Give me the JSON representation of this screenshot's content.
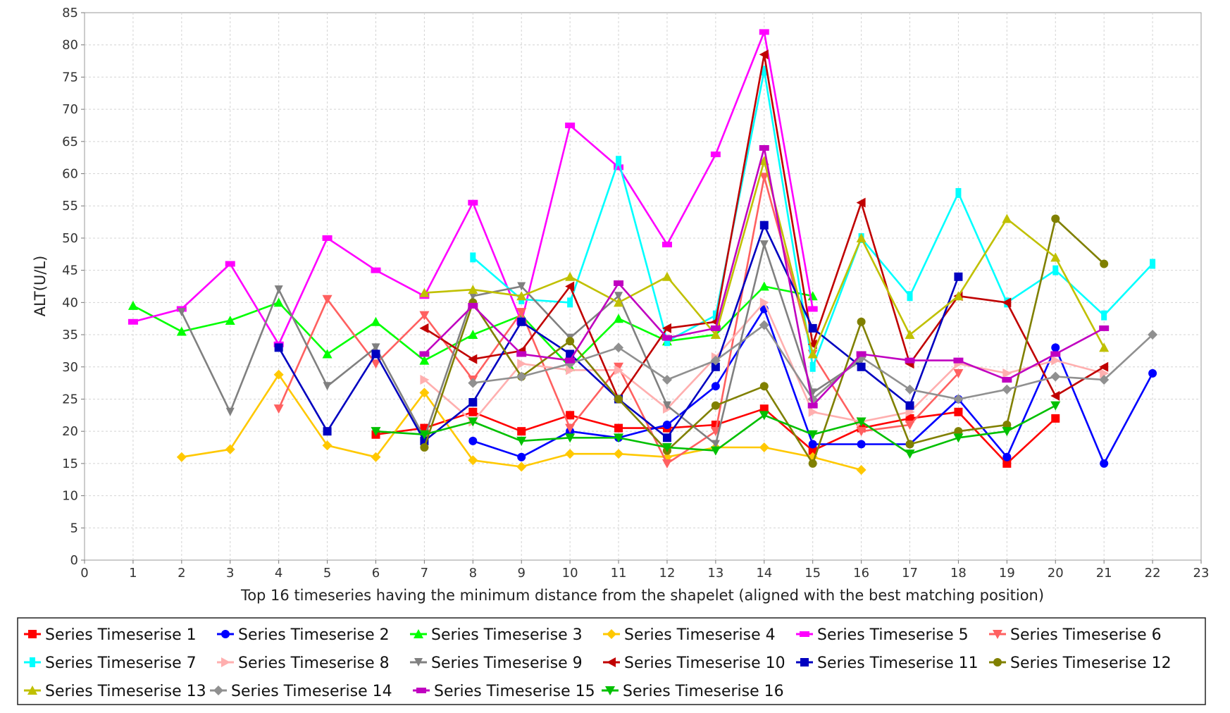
{
  "chart_data": {
    "type": "line",
    "title": "",
    "xlabel": "Top 16 timeseries having the minimum distance from the shapelet (aligned with the best matching position)",
    "ylabel": "ALT(U/L)",
    "xlim": [
      0,
      23
    ],
    "ylim": [
      0,
      85
    ],
    "x_ticks": [
      "0",
      "1",
      "2",
      "3",
      "4",
      "5",
      "6",
      "7",
      "8",
      "9",
      "10",
      "11",
      "12",
      "13",
      "14",
      "15",
      "16",
      "17",
      "18",
      "19",
      "20",
      "21",
      "22",
      "23"
    ],
    "y_ticks": [
      "0",
      "5",
      "10",
      "15",
      "20",
      "25",
      "30",
      "35",
      "40",
      "45",
      "50",
      "55",
      "60",
      "65",
      "70",
      "75",
      "80",
      "85"
    ],
    "grid": true,
    "legend_position": "bottom",
    "series": [
      {
        "name": "Series Timeserise 1",
        "color": "#ff0000",
        "marker": "square",
        "x": [
          6,
          7,
          8,
          9,
          10,
          11,
          12,
          13,
          14,
          15,
          16,
          17,
          18,
          19,
          20
        ],
        "y": [
          19.5,
          20.5,
          23,
          20,
          22.5,
          20.5,
          20.5,
          21,
          23.5,
          17,
          20.5,
          22,
          23,
          15,
          22
        ]
      },
      {
        "name": "Series Timeserise 2",
        "color": "#0000ff",
        "marker": "circle",
        "x": [
          8,
          9,
          10,
          11,
          12,
          13,
          14,
          15,
          16,
          17,
          18,
          19,
          20,
          21,
          22
        ],
        "y": [
          18.5,
          16,
          20,
          19,
          21,
          27,
          39,
          18,
          18,
          18,
          25,
          16,
          33,
          15,
          29
        ]
      },
      {
        "name": "Series Timeserise 3",
        "color": "#00ff00",
        "marker": "triangle-up",
        "x": [
          1,
          2,
          3,
          4,
          5,
          6,
          7,
          8,
          9,
          10,
          11,
          12,
          13,
          14,
          15
        ],
        "y": [
          39.5,
          35.5,
          37.2,
          40,
          32,
          37,
          31,
          35,
          38,
          30,
          37.5,
          34,
          35,
          42.5,
          41
        ]
      },
      {
        "name": "Series Timeserise 4",
        "color": "#ffc800",
        "marker": "diamond",
        "x": [
          2,
          3,
          4,
          5,
          6,
          7,
          8,
          9,
          10,
          11,
          12,
          13,
          14,
          15,
          16
        ],
        "y": [
          16,
          17.2,
          28.8,
          17.8,
          16,
          26,
          15.5,
          14.5,
          16.5,
          16.5,
          16,
          17.5,
          17.5,
          16,
          14
        ]
      },
      {
        "name": "Series Timeserise 5",
        "color": "#ff00ff",
        "marker": "rect-h",
        "x": [
          1,
          2,
          3,
          4,
          5,
          6,
          7,
          8,
          9,
          10,
          11,
          12,
          13,
          14,
          15
        ],
        "y": [
          37,
          39,
          46,
          33.5,
          50,
          45,
          41,
          55.5,
          37,
          67.5,
          61,
          49,
          63,
          82,
          39
        ]
      },
      {
        "name": "Series Timeserise 6",
        "color": "#ff6060",
        "marker": "triangle-down",
        "x": [
          4,
          5,
          6,
          7,
          8,
          9,
          10,
          11,
          12,
          13,
          14,
          15,
          16,
          17,
          18
        ],
        "y": [
          23.5,
          40.5,
          30.5,
          38,
          28,
          38.5,
          20.5,
          30,
          15,
          20,
          59.5,
          32,
          20,
          21,
          29
        ]
      },
      {
        "name": "Series Timeserise 7",
        "color": "#00ffff",
        "marker": "rect-v",
        "x": [
          8,
          9,
          10,
          11,
          12,
          13,
          14,
          15,
          16,
          17,
          18,
          19,
          20,
          21,
          22
        ],
        "y": [
          47,
          40.5,
          40,
          62,
          34,
          38,
          76,
          30,
          50,
          41,
          57,
          40,
          45,
          38,
          46
        ]
      },
      {
        "name": "Series Timeserise 8",
        "color": "#ffafaf",
        "marker": "triangle-right",
        "x": [
          7,
          8,
          9,
          10,
          11,
          12,
          13,
          14,
          15,
          16,
          17,
          18,
          19,
          20,
          21
        ],
        "y": [
          28,
          21.5,
          30.5,
          29.5,
          29.5,
          23.5,
          31.5,
          40,
          23,
          21.5,
          23,
          30.5,
          29,
          31,
          29
        ]
      },
      {
        "name": "Series Timeserise 9",
        "color": "#808080",
        "marker": "triangle-down-flat",
        "x": [
          2,
          3,
          4,
          5,
          6,
          7,
          8,
          9,
          10,
          11,
          12,
          13,
          14,
          15,
          16
        ],
        "y": [
          38.5,
          23,
          42,
          27,
          33,
          19,
          41,
          42.5,
          34.5,
          41,
          24,
          18,
          49,
          26,
          31
        ]
      },
      {
        "name": "Series Timeserise 10",
        "color": "#c00000",
        "marker": "triangle-left",
        "x": [
          7,
          8,
          9,
          10,
          11,
          12,
          13,
          14,
          15,
          16,
          17,
          18,
          19,
          20,
          21
        ],
        "y": [
          36,
          31.2,
          32.5,
          42.5,
          25,
          36,
          37,
          78.5,
          33.5,
          55.5,
          30.5,
          41,
          40,
          25.5,
          30
        ]
      },
      {
        "name": "Series Timeserise 11",
        "color": "#0000c0",
        "marker": "square",
        "x": [
          4,
          5,
          6,
          7,
          8,
          9,
          10,
          11,
          12,
          13,
          14,
          15,
          16,
          17,
          18
        ],
        "y": [
          33,
          20,
          32,
          18.5,
          24.5,
          37,
          32,
          25,
          19,
          30,
          52,
          36,
          30,
          24,
          44
        ]
      },
      {
        "name": "Series Timeserise 12",
        "color": "#808000",
        "marker": "circle",
        "x": [
          7,
          8,
          9,
          10,
          11,
          12,
          13,
          14,
          15,
          16,
          17,
          18,
          19,
          20,
          21
        ],
        "y": [
          17.5,
          40,
          28.5,
          34,
          25,
          17,
          24,
          27,
          15,
          37,
          18,
          20,
          21,
          53,
          46
        ]
      },
      {
        "name": "Series Timeserise 13",
        "color": "#c0c000",
        "marker": "triangle-up",
        "x": [
          7,
          8,
          9,
          10,
          11,
          12,
          13,
          14,
          15,
          16,
          17,
          18,
          19,
          20,
          21
        ],
        "y": [
          41.5,
          42,
          41,
          44,
          40,
          44,
          35,
          62,
          32,
          50,
          35,
          41,
          53,
          47,
          33
        ]
      },
      {
        "name": "Series Timeserise 14",
        "color": "#909090",
        "marker": "diamond",
        "x": [
          8,
          9,
          10,
          11,
          12,
          13,
          14,
          15,
          16,
          17,
          18,
          19,
          20,
          21,
          22
        ],
        "y": [
          27.5,
          28.5,
          30.5,
          33,
          28,
          31,
          36.5,
          25,
          31.5,
          26.5,
          25,
          26.5,
          28.5,
          28,
          35
        ]
      },
      {
        "name": "Series Timeserise 15",
        "color": "#c000c0",
        "marker": "rect-h",
        "x": [
          7,
          8,
          9,
          10,
          11,
          12,
          13,
          14,
          15,
          16,
          17,
          18,
          19,
          20,
          21
        ],
        "y": [
          32,
          39.5,
          32,
          31,
          43,
          34.5,
          36,
          64,
          24,
          32,
          31,
          31,
          28,
          32,
          36
        ]
      },
      {
        "name": "Series Timeserise 16",
        "color": "#00c000",
        "marker": "triangle-down",
        "x": [
          6,
          7,
          8,
          9,
          10,
          11,
          12,
          13,
          14,
          15,
          16,
          17,
          18,
          19,
          20
        ],
        "y": [
          20,
          19.5,
          21.5,
          18.5,
          19,
          19,
          17.5,
          17,
          22.5,
          19.5,
          21.5,
          16.5,
          19,
          20,
          24
        ]
      }
    ]
  }
}
